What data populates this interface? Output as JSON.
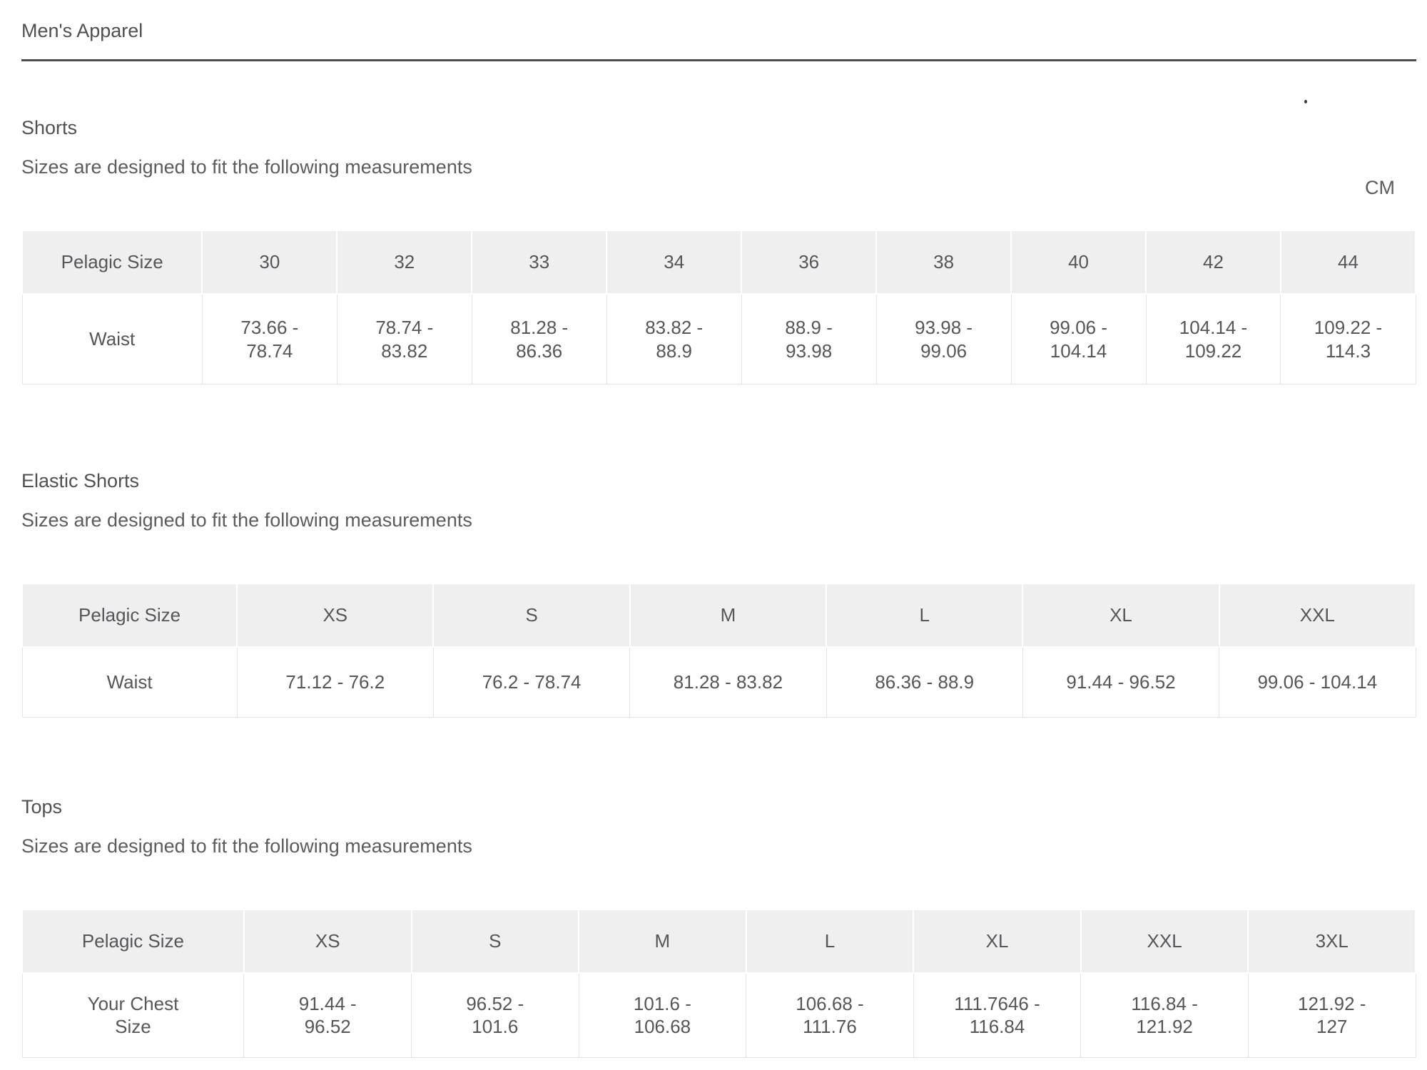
{
  "page": {
    "title": "Men's Apparel",
    "unit_label": "CM"
  },
  "sections": [
    {
      "heading": "Shorts",
      "fit_note": "Sizes are designed to fit the following measurements",
      "table": {
        "corner_label": "Pelagic Size",
        "row_label": "Waist",
        "sizes": [
          "30",
          "32",
          "33",
          "34",
          "36",
          "38",
          "40",
          "42",
          "44"
        ],
        "values": [
          "73.66 - 78.74",
          "78.74 - 83.82",
          "81.28 - 86.36",
          "83.82 - 88.9",
          "88.9 - 93.98",
          "93.98 - 99.06",
          "99.06 - 104.14",
          "104.14 - 109.22",
          "109.22 - 114.3"
        ]
      }
    },
    {
      "heading": "Elastic Shorts",
      "fit_note": "Sizes are designed to fit the following measurements",
      "table": {
        "corner_label": "Pelagic Size",
        "row_label": "Waist",
        "sizes": [
          "XS",
          "S",
          "M",
          "L",
          "XL",
          "XXL"
        ],
        "values": [
          "71.12 - 76.2",
          "76.2 - 78.74",
          "81.28 - 83.82",
          "86.36 - 88.9",
          "91.44 - 96.52",
          "99.06 - 104.14"
        ]
      }
    },
    {
      "heading": "Tops",
      "fit_note": "Sizes are designed to fit the following measurements",
      "table": {
        "corner_label": "Pelagic Size",
        "row_label": "Your Chest Size",
        "sizes": [
          "XS",
          "S",
          "M",
          "L",
          "XL",
          "XXL",
          "3XL"
        ],
        "values": [
          "91.44 - 96.52",
          "96.52 - 101.6",
          "101.6 - 106.68",
          "106.68 - 111.76",
          "111.7646 - 116.84",
          "116.84 - 121.92",
          "121.92 - 127"
        ]
      }
    }
  ],
  "colors": {
    "header_bg": "#efefef",
    "cell_border": "#e4e4e4",
    "text": "#58595b",
    "rule": "#4d4d4f"
  }
}
